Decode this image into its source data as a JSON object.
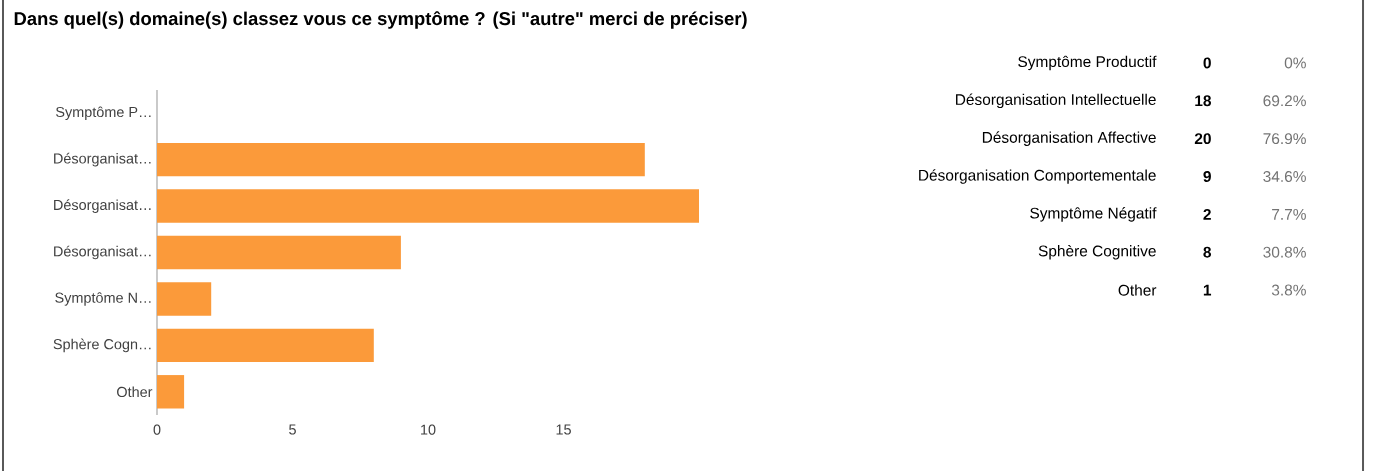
{
  "chart_data": [
    {
      "type": "bar",
      "orientation": "horizontal",
      "title": "Dans quel(s) domaine(s) classez vous ce symptôme ? (Si \"autre\" merci de préciser)",
      "categories": [
        "Symptôme P…",
        "Désorganisat…",
        "Désorganisat…",
        "Désorganisat…",
        "Symptôme N…",
        "Sphère Cogn…",
        "Other"
      ],
      "values": [
        0,
        18,
        20,
        9,
        2,
        8,
        1
      ],
      "color": "#fb9a3a",
      "xlim": [
        0,
        20
      ],
      "xticks": [
        0,
        5,
        10,
        15
      ],
      "grid": false
    },
    {
      "type": "other",
      "categories": [
        "Symptôme Productif",
        "Désorganisation Intellectuelle",
        "Désorganisation Affective",
        "Désorganisation Comportementale",
        "Symptôme Négatif",
        "Sphère Cognitive",
        "Other"
      ],
      "annotations": [
        "0",
        "18",
        "20",
        "9",
        "2",
        "8",
        "1"
      ],
      "value_labels": [
        "0%",
        "69.2%",
        "76.9%",
        "34.6%",
        "7.7%",
        "30.8%",
        "3.8%"
      ]
    }
  ]
}
